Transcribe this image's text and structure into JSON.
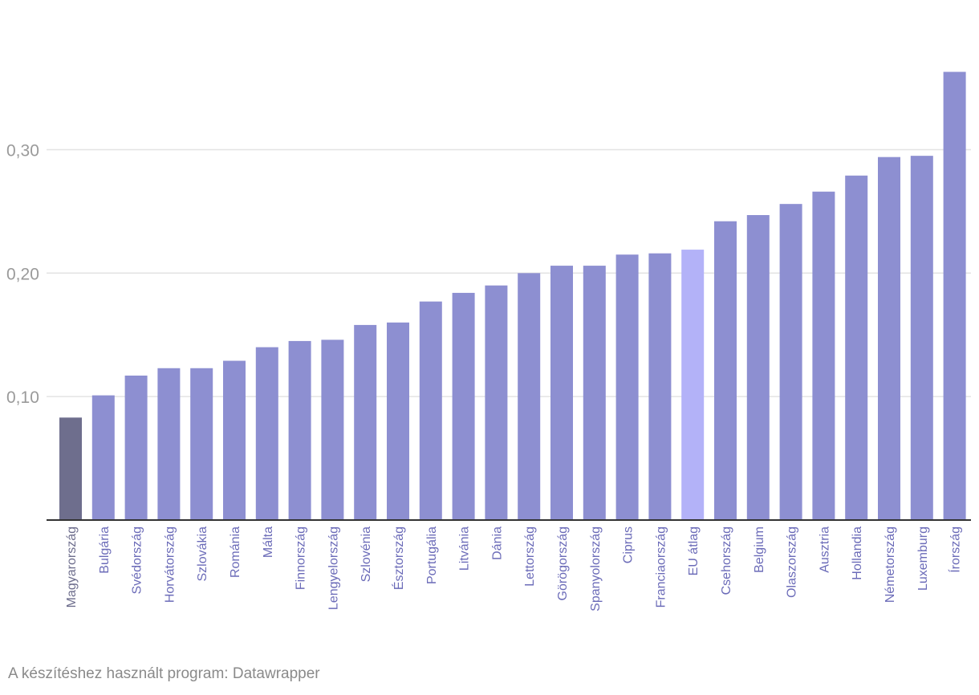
{
  "chart_data": {
    "type": "bar",
    "categories": [
      "Magyarország",
      "Bulgária",
      "Svédország",
      "Horvátország",
      "Szlovákia",
      "Románia",
      "Málta",
      "Finnország",
      "Lengyelország",
      "Szlovénia",
      "Észtország",
      "Portugália",
      "Litvánia",
      "Dánia",
      "Lettország",
      "Görögország",
      "Spanyolország",
      "Ciprus",
      "Franciaország",
      "EU átlag",
      "Csehország",
      "Belgium",
      "Olaszország",
      "Ausztria",
      "Hollandia",
      "Németország",
      "Luxemburg",
      "Írország"
    ],
    "values": [
      0.083,
      0.101,
      0.117,
      0.123,
      0.123,
      0.129,
      0.14,
      0.145,
      0.146,
      0.158,
      0.16,
      0.177,
      0.184,
      0.19,
      0.2,
      0.206,
      0.206,
      0.215,
      0.216,
      0.219,
      0.242,
      0.247,
      0.256,
      0.266,
      0.279,
      0.294,
      0.295,
      0.363
    ],
    "ylim": [
      0,
      0.39
    ],
    "yticks": [
      0.1,
      0.2,
      0.3
    ],
    "ytick_labels": [
      "0,10",
      "0,20",
      "0,30"
    ],
    "grid": true,
    "colors": {
      "default": "#8d8fd1",
      "highlight_hungary": "#6e6e8d",
      "highlight_eu": "#b3b2f8",
      "label_default": "#6b6bb8",
      "label_hungary": "#6e6e8d",
      "grid": "#e3e3e3",
      "axis": "#333333"
    }
  },
  "footer": {
    "source_text": "A készítéshez használt program: Datawrapper"
  }
}
